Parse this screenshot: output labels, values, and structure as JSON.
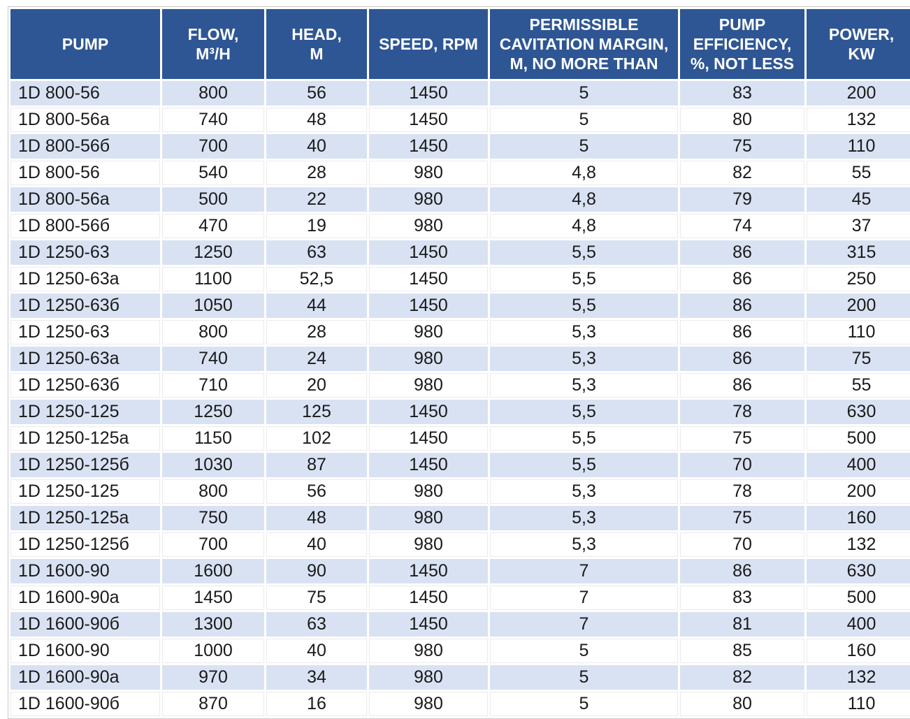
{
  "table": {
    "columns": [
      {
        "id": "pump",
        "label": "PUMP"
      },
      {
        "id": "flow",
        "label": "FLOW,\nM³/H"
      },
      {
        "id": "head",
        "label": "HEAD,\nM"
      },
      {
        "id": "speed",
        "label": "SPEED, RPM"
      },
      {
        "id": "cavitation",
        "label": "PERMISSIBLE\nCAVITATION MARGIN,\nM, NO MORE THAN"
      },
      {
        "id": "efficiency",
        "label": "PUMP\nEFFICIENCY,\n%, NOT LESS"
      },
      {
        "id": "power",
        "label": "POWER,\nKW"
      }
    ],
    "rows": [
      [
        "1D 800-56",
        "800",
        "56",
        "1450",
        "5",
        "83",
        "200"
      ],
      [
        "1D 800-56a",
        "740",
        "48",
        "1450",
        "5",
        "80",
        "132"
      ],
      [
        "1D 800-56б",
        "700",
        "40",
        "1450",
        "5",
        "75",
        "110"
      ],
      [
        "1D 800-56",
        "540",
        "28",
        "980",
        "4,8",
        "82",
        "55"
      ],
      [
        "1D 800-56a",
        "500",
        "22",
        "980",
        "4,8",
        "79",
        "45"
      ],
      [
        "1D 800-56б",
        "470",
        "19",
        "980",
        "4,8",
        "74",
        "37"
      ],
      [
        "1D 1250-63",
        "1250",
        "63",
        "1450",
        "5,5",
        "86",
        "315"
      ],
      [
        "1D 1250-63a",
        "1100",
        "52,5",
        "1450",
        "5,5",
        "86",
        "250"
      ],
      [
        "1D 1250-63б",
        "1050",
        "44",
        "1450",
        "5,5",
        "86",
        "200"
      ],
      [
        "1D 1250-63",
        "800",
        "28",
        "980",
        "5,3",
        "86",
        "110"
      ],
      [
        "1D 1250-63a",
        "740",
        "24",
        "980",
        "5,3",
        "86",
        "75"
      ],
      [
        "1D 1250-63б",
        "710",
        "20",
        "980",
        "5,3",
        "86",
        "55"
      ],
      [
        "1D 1250-125",
        "1250",
        "125",
        "1450",
        "5,5",
        "78",
        "630"
      ],
      [
        "1D 1250-125a",
        "1150",
        "102",
        "1450",
        "5,5",
        "75",
        "500"
      ],
      [
        "1D 1250-125б",
        "1030",
        "87",
        "1450",
        "5,5",
        "70",
        "400"
      ],
      [
        "1D 1250-125",
        "800",
        "56",
        "980",
        "5,3",
        "78",
        "200"
      ],
      [
        "1D 1250-125a",
        "750",
        "48",
        "980",
        "5,3",
        "75",
        "160"
      ],
      [
        "1D 1250-125б",
        "700",
        "40",
        "980",
        "5,3",
        "70",
        "132"
      ],
      [
        "1D 1600-90",
        "1600",
        "90",
        "1450",
        "7",
        "86",
        "630"
      ],
      [
        "1D 1600-90a",
        "1450",
        "75",
        "1450",
        "7",
        "83",
        "500"
      ],
      [
        "1D 1600-90б",
        "1300",
        "63",
        "1450",
        "7",
        "81",
        "400"
      ],
      [
        "1D 1600-90",
        "1000",
        "40",
        "980",
        "5",
        "85",
        "160"
      ],
      [
        "1D 1600-90a",
        "970",
        "34",
        "980",
        "5",
        "82",
        "132"
      ],
      [
        "1D 1600-90б",
        "870",
        "16",
        "980",
        "5",
        "80",
        "110"
      ]
    ]
  },
  "colors": {
    "header_bg": "#2E5694",
    "header_text": "#FFFFFF",
    "row_alt_bg": "#D9E2F3",
    "row_plain_bg": "#FFFFFF",
    "body_text": "#1A1A1A",
    "outer_border": "#C9C9C9"
  }
}
